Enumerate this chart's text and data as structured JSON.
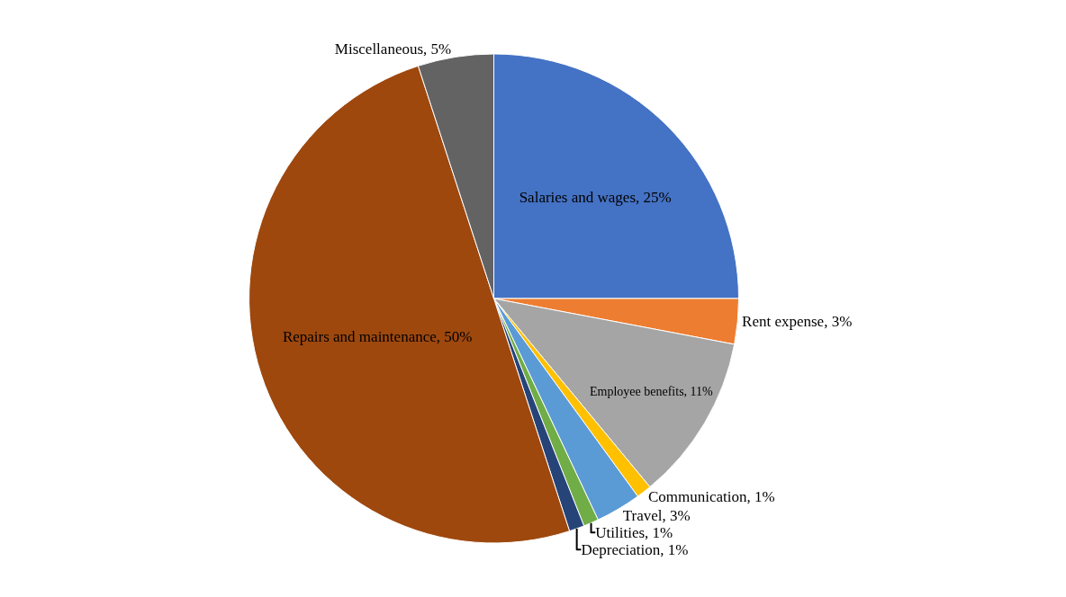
{
  "chart_data": {
    "type": "pie",
    "categories": [
      "Salaries and wages",
      "Rent expense",
      "Employee benefits",
      "Communication",
      "Travel",
      "Utilities",
      "Depreciation",
      "Repairs and maintenance",
      "Miscellaneous"
    ],
    "values": [
      25,
      3,
      11,
      1,
      3,
      1,
      1,
      50,
      5
    ],
    "value_labels": [
      "25%",
      "3%",
      "11%",
      "1%",
      "3%",
      "1%",
      "1%",
      "50%",
      "5%"
    ],
    "colors": [
      "#4472c4",
      "#ed7d31",
      "#a5a5a5",
      "#ffc000",
      "#5b9bd5",
      "#70ad47",
      "#264478",
      "#9e480e",
      "#636363"
    ],
    "legend": false
  }
}
